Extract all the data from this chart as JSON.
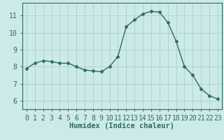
{
  "x": [
    0,
    1,
    2,
    3,
    4,
    5,
    6,
    7,
    8,
    9,
    10,
    11,
    12,
    13,
    14,
    15,
    16,
    17,
    18,
    19,
    20,
    21,
    22,
    23
  ],
  "y": [
    7.9,
    8.2,
    8.35,
    8.3,
    8.2,
    8.2,
    8.0,
    7.8,
    7.75,
    7.7,
    8.0,
    8.6,
    10.35,
    10.75,
    11.1,
    11.25,
    11.2,
    10.6,
    9.5,
    8.0,
    7.5,
    6.7,
    6.3,
    6.1
  ],
  "line_color": "#2e6b5e",
  "marker": "D",
  "marker_size": 2.5,
  "bg_color": "#cceae7",
  "grid_color": "#b0d4d0",
  "xlabel": "Humidex (Indice chaleur)",
  "xlim": [
    -0.5,
    23.5
  ],
  "ylim": [
    5.5,
    11.75
  ],
  "yticks": [
    6,
    7,
    8,
    9,
    10,
    11
  ],
  "xticks": [
    0,
    1,
    2,
    3,
    4,
    5,
    6,
    7,
    8,
    9,
    10,
    11,
    12,
    13,
    14,
    15,
    16,
    17,
    18,
    19,
    20,
    21,
    22,
    23
  ],
  "label_fontsize": 7.5,
  "tick_fontsize": 7.0
}
